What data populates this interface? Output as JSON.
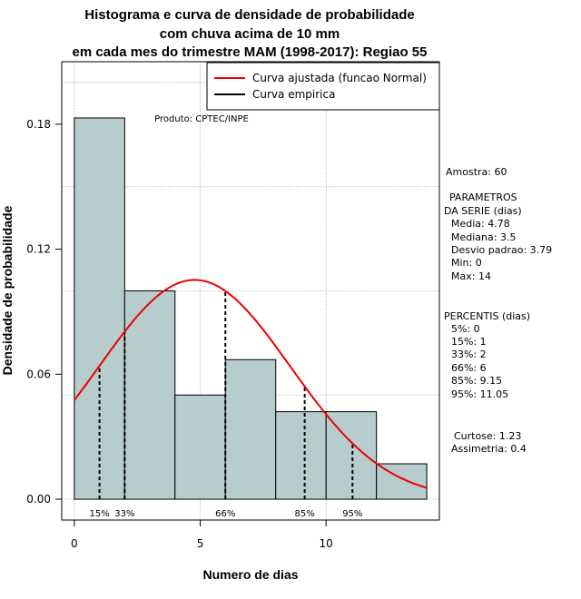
{
  "chart_data": {
    "type": "bar",
    "title_lines": [
      "Histograma e curva de densidade de probabilidade",
      "com chuva acima de 10 mm",
      "em cada mes do trimestre MAM (1998-2017): Regiao 55"
    ],
    "xlabel": "Numero de dias",
    "ylabel": "Densidade de probabilidade",
    "xlim": [
      -0.5,
      14.5
    ],
    "ylim": [
      -0.01,
      0.21
    ],
    "x_ticks": [
      0,
      5,
      10
    ],
    "y_ticks": [
      0.0,
      0.06,
      0.12,
      0.18
    ],
    "y_tick_labels": [
      "0.00",
      "0.06",
      "0.12",
      "0.18"
    ],
    "x_grid": [
      0,
      5,
      10
    ],
    "y_grid": [
      0.0,
      0.05,
      0.1,
      0.15,
      0.2
    ],
    "bins": [
      {
        "start": 0,
        "end": 2,
        "density": 0.183
      },
      {
        "start": 2,
        "end": 4,
        "density": 0.1
      },
      {
        "start": 4,
        "end": 6,
        "density": 0.05
      },
      {
        "start": 6,
        "end": 8,
        "density": 0.067
      },
      {
        "start": 8,
        "end": 10,
        "density": 0.042
      },
      {
        "start": 10,
        "end": 12,
        "density": 0.042
      },
      {
        "start": 12,
        "end": 14,
        "density": 0.017
      }
    ],
    "bar_fill": "#b7cccc",
    "curve": {
      "label": "Curva ajustada (funcao Normal)",
      "distribution": "normal",
      "mean": 4.78,
      "sd": 3.79,
      "x_range": [
        0,
        14
      ],
      "color": "#ee0000"
    },
    "empirical": {
      "label": "Curva empirica",
      "color": "#000000"
    },
    "percentile_lines": [
      {
        "label": "15%",
        "x": 1
      },
      {
        "label": "33%",
        "x": 2
      },
      {
        "label": "66%",
        "x": 6
      },
      {
        "label": "85%",
        "x": 9.15
      },
      {
        "label": "95%",
        "x": 11.05
      }
    ],
    "product_label": "Produto: CPTEC/INPE",
    "legend_position": "top-right"
  },
  "sidebar": {
    "amostra": "Amostra: 60",
    "param_title_1": "PARAMETROS",
    "param_title_2": "DA SERIE (dias)",
    "media": "Media: 4.78",
    "mediana": "Mediana: 3.5",
    "desvio": "Desvio padrao: 3.79",
    "min": "Min: 0",
    "max": "Max: 14",
    "percentis_title": "PERCENTIS (dias)",
    "p5": "5%: 0",
    "p15": "15%: 1",
    "p33": "33%: 2",
    "p66": "66%: 6",
    "p85": "85%: 9.15",
    "p95": "95%: 11.05",
    "curtose": "Curtose: 1.23",
    "assimetria": "Assimetria: 0.4"
  }
}
